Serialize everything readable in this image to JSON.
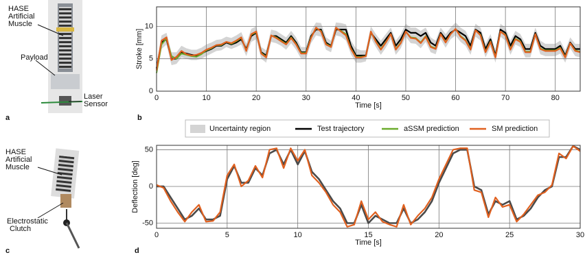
{
  "photos": [
    {
      "panel": "a",
      "muscle": [
        "HASE",
        "Artificial",
        "Muscle"
      ],
      "payload": "Payload",
      "sensor": [
        "Laser",
        "Sensor"
      ]
    },
    {
      "panel": "c",
      "muscle": [
        "HASE",
        "Artificial",
        "Muscle"
      ],
      "clutch": [
        "Electrostatic",
        "Clutch"
      ]
    }
  ],
  "chart_data": [
    {
      "type": "line",
      "panel": "b",
      "xlabel": "Time [s]",
      "ylabel": "Stroke [mm]",
      "xlim": [
        0,
        85
      ],
      "ylim": [
        0,
        13
      ],
      "xticks": [
        0,
        10,
        20,
        30,
        40,
        50,
        60,
        70,
        80
      ],
      "yticks": [
        0,
        5,
        10
      ],
      "grid": true,
      "x": [
        0,
        1,
        2,
        3,
        4,
        5,
        6,
        7,
        8,
        9,
        10,
        11,
        12,
        13,
        14,
        15,
        16,
        17,
        18,
        19,
        20,
        21,
        22,
        23,
        24,
        25,
        26,
        27,
        28,
        29,
        30,
        31,
        32,
        33,
        34,
        35,
        36,
        37,
        38,
        39,
        40,
        41,
        42,
        43,
        44,
        45,
        46,
        47,
        48,
        49,
        50,
        51,
        52,
        53,
        54,
        55,
        56,
        57,
        58,
        59,
        60,
        61,
        62,
        63,
        64,
        65,
        66,
        67,
        68,
        69,
        70,
        71,
        72,
        73,
        74,
        75,
        76,
        77,
        78,
        79,
        80,
        81,
        82,
        83,
        84,
        85
      ],
      "band": {
        "name": "Uncertainty region",
        "color": "#d4d4d4",
        "lower": [
          2.5,
          6.5,
          7.2,
          4,
          4.2,
          5.2,
          5,
          4.8,
          4.8,
          5,
          5.4,
          5.8,
          6.2,
          6.3,
          6.8,
          6.5,
          6.8,
          7.2,
          5.4,
          7.6,
          8,
          5,
          4.4,
          7.6,
          7.4,
          7,
          6.4,
          7.4,
          6.4,
          5,
          5,
          7.4,
          8.6,
          8.4,
          6.4,
          6,
          8.6,
          8.4,
          7.8,
          5.7,
          4.4,
          4.4,
          4.6,
          8.2,
          6.8,
          5.6,
          6.7,
          8,
          5.6,
          6.6,
          8.4,
          7.4,
          7.3,
          6.6,
          7.6,
          6,
          5.7,
          8,
          6.7,
          8,
          8.6,
          7.6,
          7,
          5.6,
          8.4,
          7.8,
          5.2,
          6.8,
          4.4,
          8.4,
          7.8,
          5.6,
          7.2,
          6.8,
          5.2,
          5.2,
          8,
          5.7,
          5.4,
          5.4,
          5.4,
          5.8,
          4.4,
          6.6,
          5.4,
          5.2
        ],
        "upper": [
          4.4,
          8.6,
          9,
          6,
          6,
          7,
          6.6,
          6.4,
          6.4,
          6.7,
          7.2,
          7.5,
          7.9,
          8,
          8.4,
          8.2,
          8.6,
          9.1,
          7.3,
          9.6,
          10,
          6.8,
          6.3,
          9.5,
          9.3,
          8.8,
          8.3,
          9.3,
          8.3,
          6.8,
          6.8,
          9.3,
          10.6,
          10.5,
          8.3,
          7.8,
          10.6,
          10.5,
          10.3,
          7.8,
          6.6,
          6.3,
          6.3,
          10,
          8.8,
          7.8,
          8.8,
          9.8,
          7.8,
          8.8,
          10.4,
          9.8,
          9.8,
          9.3,
          9.8,
          8.3,
          7.8,
          9.8,
          8.8,
          9.8,
          10.6,
          9.8,
          9.3,
          7.8,
          10.4,
          9.8,
          7.3,
          8.8,
          6.3,
          10.4,
          9.8,
          7.8,
          9.3,
          8.8,
          7.3,
          7.3,
          9.8,
          7.8,
          7.3,
          7.3,
          7.3,
          7.8,
          6.3,
          8.3,
          7.3,
          7.3
        ]
      },
      "series": [
        {
          "name": "Test trajectory",
          "color": "#000000",
          "width": 2.2,
          "values": [
            3.5,
            7.5,
            8,
            5,
            5,
            6,
            5.8,
            5.6,
            5.5,
            5.8,
            6.2,
            6.5,
            7,
            7,
            7.5,
            7.2,
            7.5,
            8,
            6.5,
            8.5,
            9,
            6,
            5.5,
            8.5,
            8.5,
            8,
            7.5,
            8.5,
            7.5,
            6,
            6,
            8.5,
            9.5,
            9.5,
            7.5,
            7,
            9.5,
            9.5,
            9.5,
            7,
            5.5,
            5.5,
            5.5,
            9,
            8,
            7,
            8,
            9,
            7,
            8,
            9.5,
            9,
            9,
            8.5,
            9,
            7.5,
            7,
            9,
            8,
            9,
            9.5,
            9,
            8.5,
            7,
            9.5,
            9,
            6.5,
            8,
            5.5,
            9.5,
            9,
            7,
            8.5,
            8,
            6.5,
            6.5,
            9,
            7,
            6.5,
            6.5,
            6.5,
            7,
            5.5,
            7.5,
            6.5,
            6.5
          ]
        },
        {
          "name": "aSSM prediction",
          "color": "#6aaa2a",
          "width": 2,
          "values": [
            2.8,
            7.2,
            8.1,
            5.4,
            5,
            5.8,
            5.6,
            5.4,
            5.3,
            5.7,
            6.3,
            6.6,
            7.1,
            7.1,
            7.6,
            7.3,
            7.7,
            8.2,
            6.3,
            8.7,
            9.1,
            5.9,
            5.3,
            8.6,
            8.3,
            7.8,
            7.3,
            8.3,
            7.3,
            5.9,
            5.9,
            8.3,
            9.7,
            9.3,
            7.3,
            6.9,
            9.7,
            9.3,
            8.8,
            6.6,
            5.3,
            5.3,
            5.4,
            9.1,
            7.7,
            6.5,
            7.6,
            8.8,
            6.5,
            7.5,
            9.2,
            8.3,
            8.2,
            7.5,
            8.5,
            6.9,
            6.6,
            8.8,
            7.6,
            8.8,
            9.6,
            8.5,
            7.9,
            6.5,
            9.4,
            8.7,
            6.1,
            7.7,
            5.3,
            9.2,
            8.7,
            6.5,
            8.1,
            7.7,
            6.1,
            6.1,
            8.8,
            6.6,
            6.3,
            6.3,
            6.3,
            6.7,
            5.3,
            7.4,
            6.3,
            6.1
          ]
        },
        {
          "name": "SM prediction",
          "color": "#e0601f",
          "width": 2.2,
          "values": [
            3.2,
            7.8,
            8.3,
            4.8,
            5.3,
            6.2,
            5.7,
            5.5,
            5.6,
            5.9,
            6.4,
            6.7,
            7.1,
            7.2,
            7.6,
            7.4,
            7.8,
            8.3,
            6.2,
            8.8,
            9.2,
            5.8,
            5.2,
            8.6,
            8.2,
            7.7,
            7.2,
            8.2,
            7.2,
            5.8,
            5.8,
            8.2,
            9.8,
            9.2,
            7.2,
            6.8,
            9.8,
            9.2,
            8.6,
            6.5,
            5.2,
            5.2,
            5.4,
            9.2,
            7.6,
            6.4,
            7.5,
            8.8,
            6.4,
            7.4,
            9.2,
            8.2,
            8.1,
            7.4,
            8.4,
            6.8,
            6.5,
            8.8,
            7.5,
            8.8,
            9.6,
            8.4,
            7.8,
            6.4,
            9.4,
            8.6,
            6,
            7.6,
            5.2,
            9.2,
            8.6,
            6.4,
            8,
            7.6,
            6,
            6,
            8.8,
            6.5,
            6.2,
            6.2,
            6.2,
            6.6,
            5.2,
            7.4,
            6.2,
            6
          ]
        }
      ]
    },
    {
      "type": "line",
      "panel": "d",
      "xlabel": "Time [s]",
      "ylabel": "Deflection [deg]",
      "xlim": [
        0,
        30
      ],
      "ylim": [
        -57,
        56
      ],
      "xticks": [
        0,
        5,
        10,
        15,
        20,
        25,
        30
      ],
      "yticks": [
        -50,
        0,
        50
      ],
      "grid": true,
      "x": [
        0,
        0.5,
        1,
        1.5,
        2,
        2.5,
        3,
        3.5,
        4,
        4.5,
        5,
        5.5,
        6,
        6.5,
        7,
        7.5,
        8,
        8.5,
        9,
        9.5,
        10,
        10.5,
        11,
        11.5,
        12,
        12.5,
        13,
        13.5,
        14,
        14.5,
        15,
        15.5,
        16,
        16.5,
        17,
        17.5,
        18,
        18.5,
        19,
        19.5,
        20,
        20.5,
        21,
        21.5,
        22,
        22.5,
        23,
        23.5,
        24,
        24.5,
        25,
        25.5,
        26,
        26.5,
        27,
        27.5,
        28,
        28.5,
        29,
        29.5,
        30
      ],
      "series": [
        {
          "color": "#4a4a4a",
          "width": 2.6,
          "values": [
            0,
            0,
            -15,
            -30,
            -45,
            -40,
            -30,
            -45,
            -45,
            -40,
            10,
            28,
            5,
            5,
            25,
            15,
            45,
            50,
            30,
            50,
            30,
            48,
            20,
            10,
            -5,
            -20,
            -30,
            -50,
            -50,
            -25,
            -50,
            -40,
            -45,
            -50,
            -50,
            -30,
            -50,
            -45,
            -35,
            -20,
            5,
            25,
            45,
            50,
            50,
            0,
            -5,
            -38,
            -20,
            -25,
            -20,
            -45,
            -40,
            -30,
            -15,
            -5,
            0,
            40,
            40,
            55,
            50
          ]
        },
        {
          "color": "#e0601f",
          "width": 2.2,
          "values": [
            2,
            -2,
            -20,
            -35,
            -48,
            -35,
            -25,
            -48,
            -47,
            -35,
            15,
            30,
            0,
            8,
            28,
            12,
            50,
            52,
            25,
            52,
            35,
            50,
            15,
            5,
            -8,
            -25,
            -35,
            -55,
            -52,
            -20,
            -45,
            -35,
            -48,
            -52,
            -55,
            -25,
            -52,
            -40,
            -30,
            -15,
            10,
            30,
            50,
            52,
            52,
            -5,
            -8,
            -42,
            -15,
            -28,
            -25,
            -48,
            -38,
            -25,
            -12,
            -8,
            2,
            45,
            38,
            55,
            48
          ]
        }
      ]
    }
  ]
}
